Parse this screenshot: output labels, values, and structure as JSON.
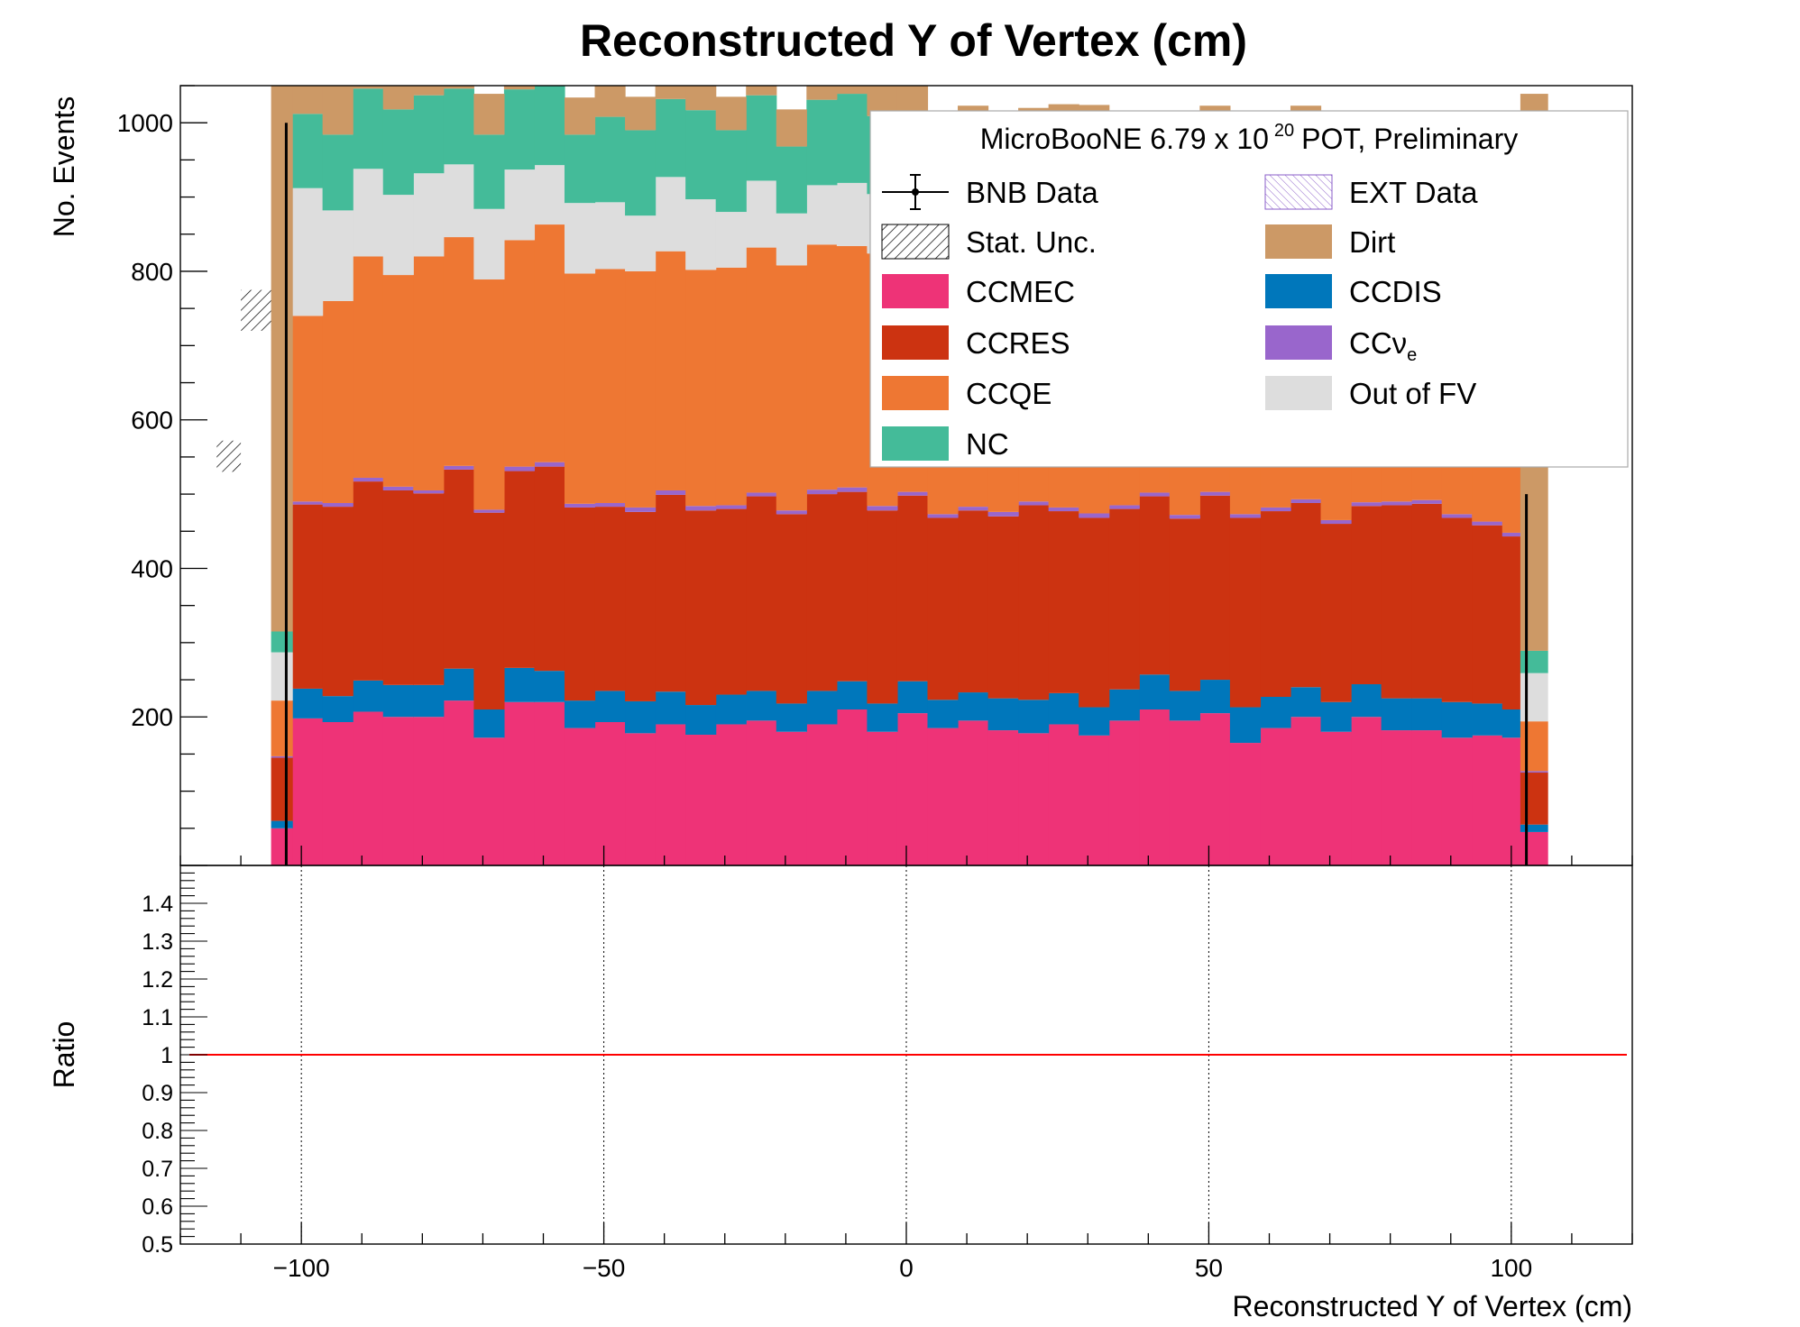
{
  "chart_data": {
    "type": "bar",
    "title": "Reconstructed Y of Vertex (cm)",
    "xlabel": "Reconstructed Y of Vertex (cm)",
    "ylabel": "No. Events",
    "ratio_ylabel": "Ratio",
    "xlim": [
      -120,
      120
    ],
    "ylim": [
      0,
      1050
    ],
    "ratio_ylim": [
      0.5,
      1.5
    ],
    "x_ticks": [
      -100,
      -50,
      0,
      50,
      100
    ],
    "x_tick_labels": [
      "−100",
      "−50",
      "0",
      "50",
      "100"
    ],
    "y_ticks": [
      200,
      400,
      600,
      800,
      1000
    ],
    "y_tick_labels": [
      "200",
      "400",
      "600",
      "800",
      "1000"
    ],
    "ratio_ticks": [
      0.5,
      0.6,
      0.7,
      0.8,
      0.9,
      1,
      1.1,
      1.2,
      1.3,
      1.4
    ],
    "ratio_tick_labels": [
      "0.5",
      "0.6",
      "0.7",
      "0.8",
      "0.9",
      "1",
      "1.1",
      "1.2",
      "1.3",
      "1.4"
    ],
    "ratio_line": 1,
    "bin_edges": [
      -105,
      -101.5,
      -96.5,
      -91.5,
      -86.5,
      -81.5,
      -76.5,
      -71.5,
      -66.5,
      -61.5,
      -56.5,
      -51.5,
      -46.5,
      -41.5,
      -36.5,
      -31.5,
      -26.5,
      -21.5,
      -16.5,
      -11.5,
      -6.5,
      -1.5,
      3.5,
      8.5,
      13.5,
      18.5,
      23.5,
      28.5,
      33.5,
      38.5,
      43.5,
      48.5,
      53.5,
      58.5,
      63.5,
      68.5,
      73.5,
      78.5,
      83.5,
      88.5,
      93.5,
      98.5,
      101.5,
      106
    ],
    "stack_order": [
      "CCMEC",
      "CCDIS",
      "CCRES",
      "CCνe",
      "CCQE",
      "Out of FV",
      "NC",
      "Dirt"
    ],
    "series": [
      {
        "name": "CCMEC",
        "color": "#EE3377",
        "values": [
          50,
          198,
          193,
          207,
          200,
          200,
          222,
          172,
          220,
          220,
          185,
          193,
          178,
          190,
          176,
          190,
          195,
          180,
          190,
          210,
          180,
          205,
          185,
          195,
          182,
          178,
          190,
          175,
          195,
          210,
          195,
          205,
          165,
          185,
          200,
          180,
          200,
          182,
          182,
          172,
          175,
          172,
          45
        ]
      },
      {
        "name": "CCDIS",
        "color": "#0077BB",
        "values": [
          10,
          40,
          35,
          42,
          43,
          43,
          43,
          38,
          46,
          42,
          37,
          42,
          43,
          44,
          40,
          40,
          40,
          38,
          45,
          38,
          38,
          43,
          38,
          38,
          43,
          45,
          42,
          38,
          42,
          47,
          40,
          45,
          48,
          42,
          40,
          40,
          44,
          43,
          43,
          48,
          43,
          38,
          10
        ]
      },
      {
        "name": "CCRES",
        "color": "#CC3311",
        "values": [
          85,
          248,
          255,
          268,
          262,
          258,
          268,
          265,
          265,
          275,
          260,
          248,
          255,
          265,
          262,
          250,
          262,
          255,
          265,
          255,
          260,
          250,
          245,
          245,
          245,
          262,
          245,
          255,
          243,
          240,
          232,
          248,
          255,
          250,
          248,
          240,
          240,
          260,
          262,
          248,
          240,
          233,
          70
        ]
      },
      {
        "name": "CCνe",
        "color": "#9966CC",
        "values": [
          2,
          4,
          5,
          5,
          5,
          4,
          5,
          4,
          6,
          6,
          5,
          5,
          6,
          6,
          6,
          5,
          5,
          5,
          6,
          6,
          6,
          5,
          5,
          5,
          6,
          5,
          5,
          6,
          5,
          5,
          5,
          5,
          5,
          5,
          5,
          5,
          5,
          5,
          5,
          5,
          5,
          5,
          2
        ]
      },
      {
        "name": "CCQE",
        "color": "#EE7733",
        "values": [
          75,
          250,
          272,
          298,
          285,
          315,
          308,
          310,
          305,
          320,
          310,
          315,
          318,
          322,
          318,
          320,
          330,
          330,
          330,
          325,
          340,
          300,
          300,
          300,
          295,
          290,
          298,
          300,
          290,
          285,
          298,
          280,
          285,
          285,
          290,
          295,
          290,
          280,
          280,
          285,
          290,
          290,
          67
        ]
      },
      {
        "name": "Out of FV",
        "color": "#DDDDDD",
        "values": [
          65,
          172,
          122,
          118,
          108,
          112,
          98,
          95,
          95,
          80,
          95,
          90,
          75,
          100,
          95,
          75,
          90,
          70,
          80,
          85,
          80,
          95,
          90,
          90,
          85,
          80,
          80,
          85,
          85,
          80,
          82,
          85,
          75,
          80,
          80,
          85,
          80,
          80,
          80,
          85,
          85,
          80,
          65
        ]
      },
      {
        "name": "NC",
        "color": "#44BB99",
        "values": [
          28,
          100,
          102,
          108,
          115,
          105,
          102,
          100,
          108,
          115,
          92,
          115,
          115,
          105,
          120,
          110,
          115,
          90,
          115,
          120,
          105,
          110,
          100,
          110,
          105,
          115,
          115,
          120,
          105,
          100,
          110,
          115,
          100,
          110,
          115,
          105,
          110,
          105,
          105,
          110,
          110,
          100,
          30
        ]
      },
      {
        "name": "Dirt",
        "color": "#CC9966",
        "values": [
          740,
          70,
          70,
          55,
          45,
          45,
          30,
          55,
          30,
          30,
          50,
          50,
          45,
          45,
          45,
          45,
          40,
          50,
          40,
          35,
          45,
          45,
          40,
          40,
          45,
          45,
          50,
          45,
          45,
          40,
          45,
          40,
          50,
          50,
          45,
          50,
          45,
          50,
          50,
          50,
          55,
          60,
          750
        ]
      }
    ],
    "bnb_data": {
      "name": "BNB Data",
      "points": [
        {
          "x": -102.5,
          "y": 1000
        },
        {
          "x": 102.5,
          "y": 500
        }
      ]
    },
    "stat_unc_hatched_bins": [
      [
        -110,
        -105,
        720,
        775
      ],
      [
        -114,
        -110,
        530,
        572
      ]
    ],
    "legend": {
      "placement": "top-right",
      "header": "MicroBooNE 6.79 x 10",
      "header_sup": "20",
      "header_tail": "POT, Preliminary",
      "left_column": [
        {
          "label": "BNB Data",
          "kind": "errorbar",
          "color": "#000000"
        },
        {
          "label": "Stat. Unc.",
          "kind": "hatch",
          "color": "#000000"
        },
        {
          "label": "CCMEC",
          "kind": "box",
          "color": "#EE3377"
        },
        {
          "label": "CCRES",
          "kind": "box",
          "color": "#CC3311"
        },
        {
          "label": "CCQE",
          "kind": "box",
          "color": "#EE7733"
        },
        {
          "label": "NC",
          "kind": "box",
          "color": "#44BB99"
        }
      ],
      "right_column": [
        {
          "label": "EXT Data",
          "kind": "hatch-ext",
          "color": "#9966CC"
        },
        {
          "label": "Dirt",
          "kind": "box",
          "color": "#CC9966"
        },
        {
          "label": "CCDIS",
          "kind": "box",
          "color": "#0077BB"
        },
        {
          "label": "CCν",
          "sub": "e",
          "kind": "box",
          "color": "#9966CC"
        },
        {
          "label": "Out of FV",
          "kind": "box",
          "color": "#DDDDDD"
        }
      ]
    },
    "grid": "ratio panel vertical dotted grid at x ticks"
  }
}
